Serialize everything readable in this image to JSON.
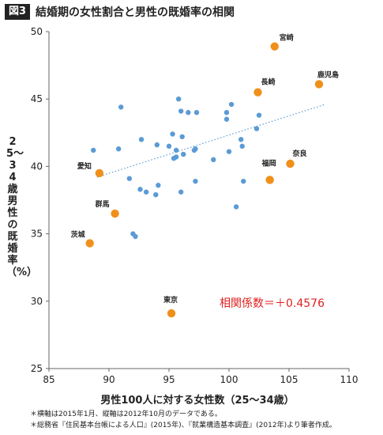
{
  "header": {
    "badge": "図3",
    "title": "結婚期の女性割合と男性の既婚率の相関"
  },
  "notes": [
    "＊横軸は2015年1月、縦軸は2012年10月のデータである。",
    "＊総務省『住民基本台帳による人口』(2015年)、『就業構造基本調査』(2012年)より筆者作成。"
  ],
  "chart_data": {
    "type": "scatter",
    "title": "結婚期の女性割合と男性の既婚率の相関",
    "xlabel": "男性100人に対する女性数（25〜34歳）",
    "ylabel": "25〜34歳男性の既婚率（%）",
    "xlim": [
      85,
      110
    ],
    "ylim": [
      25,
      50
    ],
    "xticks": [
      85,
      90,
      95,
      100,
      105,
      110
    ],
    "yticks": [
      25,
      30,
      35,
      40,
      45,
      50
    ],
    "grid": false,
    "annotation": "相関係数＝＋0.4576",
    "trendline": {
      "style": "dotted",
      "x": [
        89,
        108
      ],
      "y": [
        39.2,
        44.6
      ]
    },
    "colors": {
      "blue": "#5b9bd5",
      "orange": "#f0901a",
      "trend": "#5b9bd5",
      "annotation": "#e02020"
    },
    "highlighted": [
      {
        "label": "宮崎",
        "x": 103.8,
        "y": 48.9
      },
      {
        "label": "鹿児島",
        "x": 107.5,
        "y": 46.1
      },
      {
        "label": "長崎",
        "x": 102.4,
        "y": 45.5
      },
      {
        "label": "奈良",
        "x": 105.1,
        "y": 40.2
      },
      {
        "label": "愛知",
        "x": 89.2,
        "y": 39.5
      },
      {
        "label": "福岡",
        "x": 103.4,
        "y": 39.0
      },
      {
        "label": "群馬",
        "x": 90.5,
        "y": 36.5
      },
      {
        "label": "茨城",
        "x": 88.4,
        "y": 34.3
      },
      {
        "label": "東京",
        "x": 95.2,
        "y": 29.1
      }
    ],
    "points": [
      {
        "x": 88.7,
        "y": 41.2
      },
      {
        "x": 91.0,
        "y": 44.4
      },
      {
        "x": 90.8,
        "y": 41.3
      },
      {
        "x": 91.7,
        "y": 39.1
      },
      {
        "x": 92.6,
        "y": 38.3
      },
      {
        "x": 92.7,
        "y": 42.0
      },
      {
        "x": 93.1,
        "y": 38.1
      },
      {
        "x": 92.0,
        "y": 35.0
      },
      {
        "x": 92.2,
        "y": 34.8
      },
      {
        "x": 93.9,
        "y": 37.9
      },
      {
        "x": 94.1,
        "y": 38.6
      },
      {
        "x": 94.0,
        "y": 41.6
      },
      {
        "x": 95.0,
        "y": 41.5
      },
      {
        "x": 95.3,
        "y": 42.4
      },
      {
        "x": 95.4,
        "y": 40.6
      },
      {
        "x": 95.6,
        "y": 40.7
      },
      {
        "x": 95.6,
        "y": 41.2
      },
      {
        "x": 95.8,
        "y": 45.0
      },
      {
        "x": 96.0,
        "y": 44.1
      },
      {
        "x": 96.1,
        "y": 42.2
      },
      {
        "x": 96.0,
        "y": 38.1
      },
      {
        "x": 96.2,
        "y": 40.9
      },
      {
        "x": 96.6,
        "y": 44.0
      },
      {
        "x": 97.1,
        "y": 41.2
      },
      {
        "x": 97.2,
        "y": 41.3
      },
      {
        "x": 97.3,
        "y": 44.0
      },
      {
        "x": 97.2,
        "y": 38.9
      },
      {
        "x": 98.7,
        "y": 40.5
      },
      {
        "x": 99.8,
        "y": 43.5
      },
      {
        "x": 99.8,
        "y": 44.0
      },
      {
        "x": 100.2,
        "y": 44.6
      },
      {
        "x": 100.0,
        "y": 41.1
      },
      {
        "x": 100.6,
        "y": 37.0
      },
      {
        "x": 101.0,
        "y": 42.0
      },
      {
        "x": 101.1,
        "y": 41.5
      },
      {
        "x": 101.2,
        "y": 38.9
      },
      {
        "x": 102.3,
        "y": 42.8
      },
      {
        "x": 102.5,
        "y": 43.8
      }
    ]
  }
}
